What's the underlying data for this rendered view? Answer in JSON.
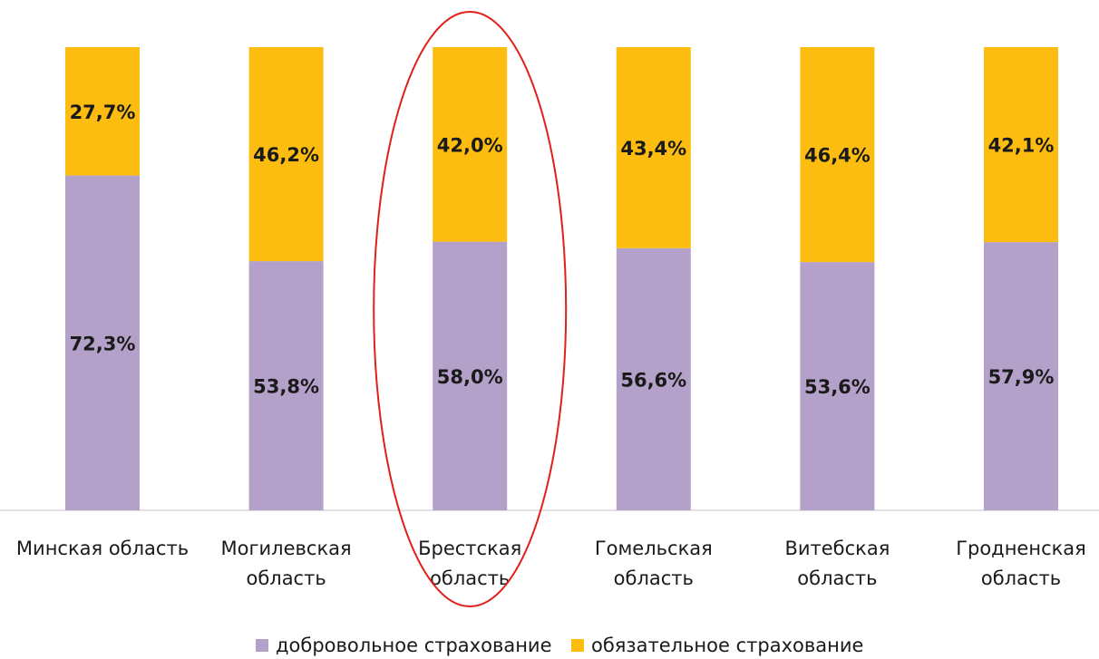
{
  "chart_data": {
    "type": "bar",
    "stacked": true,
    "categories": [
      [
        "Минская область"
      ],
      [
        "Могилевская",
        "область"
      ],
      [
        "Брестская",
        "область"
      ],
      [
        "Гомельская",
        "область"
      ],
      [
        "Витебская",
        "область"
      ],
      [
        "Гродненская",
        "область"
      ]
    ],
    "series": [
      {
        "name": "добровольное страхование",
        "color": "#b3a1c9",
        "values": [
          72.3,
          53.8,
          58.0,
          56.6,
          53.6,
          57.9
        ],
        "labels": [
          "72,3%",
          "53,8%",
          "58,0%",
          "56,6%",
          "53,6%",
          "57,9%"
        ]
      },
      {
        "name": "обязательное страхование",
        "color": "#fdbd10",
        "values": [
          27.7,
          46.2,
          42.0,
          43.4,
          46.4,
          42.1
        ],
        "labels": [
          "27,7%",
          "46,2%",
          "42,0%",
          "43,4%",
          "46,4%",
          "42,1%"
        ]
      }
    ],
    "ylim": [
      0,
      100
    ],
    "grid": false,
    "legend_position": "bottom",
    "highlight": {
      "category_index": 2,
      "shape": "ellipse",
      "color": "#e0201b"
    }
  }
}
